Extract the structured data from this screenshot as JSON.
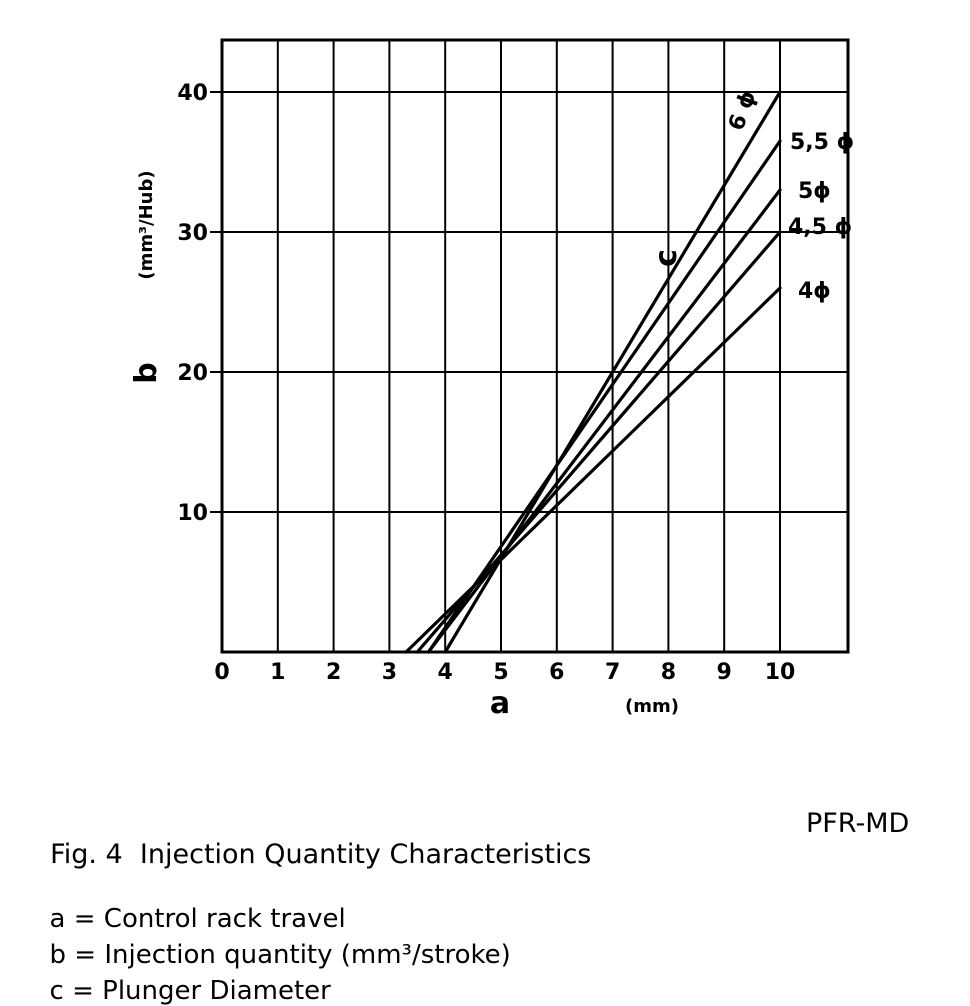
{
  "chart_data": {
    "type": "line",
    "xlabel": "a",
    "x_unit": "(mm)",
    "ylabel": "b",
    "y_unit": "(mm³/Hub)",
    "curve_label": "c",
    "xlim": [
      0,
      11
    ],
    "ylim": [
      0,
      44
    ],
    "x_ticks": [
      "0",
      "1",
      "2",
      "3",
      "4",
      "5",
      "6",
      "7",
      "8",
      "9",
      "10"
    ],
    "y_ticks": [
      "10",
      "20",
      "30",
      "40"
    ],
    "series": [
      {
        "name": "6 ϕ",
        "x": [
          4.0,
          10.0
        ],
        "y": [
          0,
          40.0
        ]
      },
      {
        "name": "5,5 ϕ",
        "x": [
          3.7,
          10.0
        ],
        "y": [
          0,
          36.5
        ]
      },
      {
        "name": "5ϕ",
        "x": [
          3.7,
          10.0
        ],
        "y": [
          0,
          33.0
        ]
      },
      {
        "name": "4,5 ϕ",
        "x": [
          3.5,
          10.0
        ],
        "y": [
          0,
          30.0
        ]
      },
      {
        "name": "4ϕ",
        "x": [
          3.3,
          10.0
        ],
        "y": [
          0,
          26.0
        ]
      }
    ]
  },
  "caption": {
    "figure": "Fig. 4",
    "title": "Injection Quantity Characteristics",
    "model": "PFR-MD"
  },
  "legend": [
    {
      "key": "a",
      "text": "Control rack travel"
    },
    {
      "key": "b",
      "text": "Injection quantity (mm³/stroke)"
    },
    {
      "key": "c",
      "text": "Plunger Diameter"
    }
  ]
}
